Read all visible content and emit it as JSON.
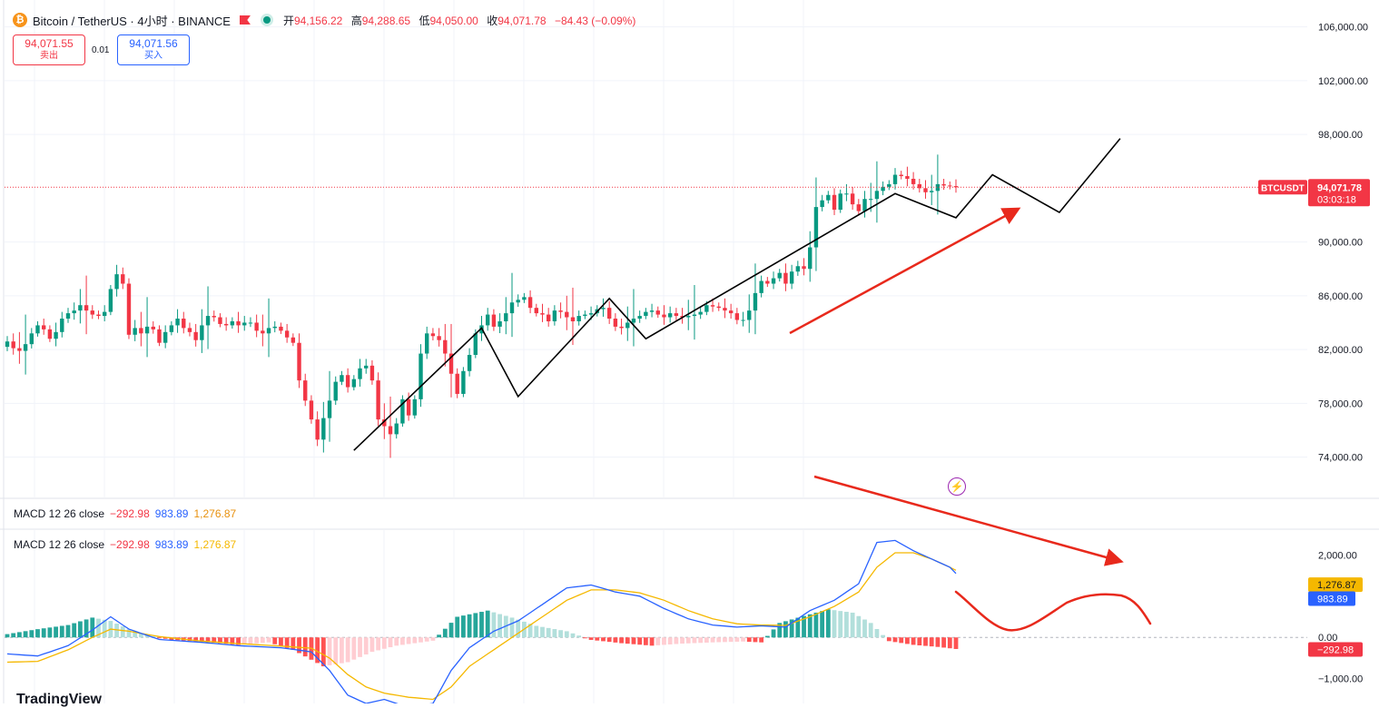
{
  "header": {
    "symbol_title": "Bitcoin / TetherUS · 4小时 · BINANCE",
    "coin_icon": "bitcoin-icon",
    "ohlc": [
      {
        "key": "开",
        "value": "94,156.22"
      },
      {
        "key": "高",
        "value": "94,288.65"
      },
      {
        "key": "低",
        "value": "94,050.00"
      },
      {
        "key": "收",
        "value": "94,071.78"
      }
    ],
    "change": "−84.43 (−0.09%)"
  },
  "trade": {
    "sell_price": "94,071.55",
    "sell_label": "卖出",
    "spread": "0.01",
    "buy_price": "94,071.56",
    "buy_label": "买入"
  },
  "colors": {
    "up": "#089981",
    "down": "#f23645",
    "macd": "#2962ff",
    "signal": "#f5b800",
    "annot": "#e8291c"
  },
  "price_axis": {
    "ticks": [
      "106,000.00",
      "102,000.00",
      "98,000.00",
      "90,000.00",
      "86,000.00",
      "82,000.00",
      "78,000.00",
      "74,000.00"
    ]
  },
  "price_badge": {
    "symbol": "BTCUSDT",
    "price": "94,071.78",
    "countdown": "03:03:18"
  },
  "macd": {
    "legend1": {
      "name": "MACD 12 26 close",
      "hist": "−292.98",
      "macd": "983.89",
      "signal": "1,276.87"
    },
    "legend2": {
      "name": "MACD 12 26 close",
      "hist": "−292.98",
      "macd": "983.89",
      "signal": "1,276.87"
    },
    "axis_ticks": [
      "2,000.00",
      "0.00",
      "−1,000.00"
    ],
    "badges": {
      "signal": "1,276.87",
      "macd": "983.89",
      "hist": "−292.98"
    }
  },
  "logo_text": "TradingView",
  "chart_data": [
    {
      "type": "candlestick",
      "ylim": [
        71000,
        108000
      ],
      "last_price": 94071.78,
      "close": [
        82600,
        82100,
        81900,
        82400,
        83200,
        83800,
        83500,
        82800,
        83300,
        84300,
        84700,
        84900,
        85300,
        84900,
        84600,
        84500,
        84800,
        86500,
        87600,
        86900,
        83100,
        83600,
        83200,
        83700,
        83500,
        82500,
        83300,
        83800,
        84300,
        83600,
        83300,
        82700,
        83800,
        84500,
        84400,
        83900,
        83800,
        84100,
        83800,
        84000,
        84000,
        83400,
        83200,
        83600,
        83700,
        83400,
        82900,
        82500,
        79700,
        78200,
        76800,
        75300,
        76900,
        78200,
        79600,
        80100,
        79200,
        79800,
        80600,
        80800,
        79700,
        76800,
        76300,
        75700,
        76500,
        78300,
        77100,
        78300,
        81700,
        83200,
        83000,
        82700,
        81700,
        80200,
        78700,
        80400,
        81600,
        83200,
        83800,
        84600,
        83700,
        84100,
        84700,
        85500,
        85700,
        85900,
        85100,
        84700,
        84600,
        84100,
        84900,
        84800,
        84400,
        84100,
        84500,
        84600,
        84700,
        85000,
        85100,
        84300,
        83700,
        83600,
        84000,
        84300,
        84500,
        84800,
        84900,
        84600,
        84400,
        84700,
        84500,
        84400,
        84500,
        84600,
        84800,
        85300,
        85200,
        85100,
        84900,
        84700,
        84200,
        84200,
        84900,
        86200,
        87100,
        86900,
        87300,
        87700,
        86900,
        87800,
        88200,
        88000,
        89600,
        92600,
        93100,
        93500,
        92400,
        93600,
        93600,
        92800,
        92300,
        93200,
        93200,
        93800,
        94100,
        94300,
        95000,
        94900,
        94700,
        94300,
        94000,
        93700,
        93800,
        94300,
        94200,
        94150,
        94071.78
      ],
      "open": [
        82200,
        82600,
        82100,
        81900,
        82400,
        83200,
        83800,
        83500,
        82800,
        83300,
        84300,
        84700,
        84900,
        85300,
        84900,
        84600,
        84500,
        84800,
        86500,
        87600,
        86900,
        83100,
        83600,
        83200,
        83700,
        83500,
        82500,
        83300,
        83800,
        84300,
        83600,
        83300,
        82700,
        83800,
        84500,
        84400,
        83900,
        83800,
        84100,
        83800,
        84000,
        84000,
        83400,
        83200,
        83600,
        83700,
        83400,
        82900,
        82500,
        79700,
        78200,
        76800,
        75300,
        76900,
        78200,
        79600,
        80100,
        79200,
        79800,
        80600,
        80800,
        79700,
        76800,
        76300,
        75700,
        76500,
        78300,
        77100,
        78300,
        81700,
        83200,
        83000,
        82700,
        81700,
        80200,
        78700,
        80400,
        81600,
        83200,
        83800,
        84600,
        83700,
        84100,
        84700,
        85500,
        85700,
        85900,
        85100,
        84700,
        84600,
        84100,
        84900,
        84800,
        84400,
        84100,
        84500,
        84600,
        84700,
        85000,
        85100,
        84300,
        83700,
        83600,
        84000,
        84300,
        84500,
        84800,
        84900,
        84600,
        84400,
        84700,
        84500,
        84400,
        84500,
        84600,
        84800,
        85300,
        85200,
        85100,
        84900,
        84700,
        84200,
        84200,
        84900,
        86200,
        87100,
        86900,
        87300,
        87700,
        86900,
        87800,
        88200,
        88000,
        89600,
        92600,
        93100,
        93500,
        92400,
        93600,
        93600,
        92800,
        92300,
        93200,
        93200,
        93800,
        94100,
        94300,
        95000,
        94900,
        94700,
        94300,
        94000,
        93700,
        93800,
        94300,
        94200,
        94156.22
      ],
      "high_extra": [
        400,
        600,
        1200,
        2200,
        400,
        300,
        500,
        300,
        700,
        500
      ],
      "current_candle": {
        "open": 94156.22,
        "high": 94288.65,
        "low": 94050.0,
        "close": 94071.78
      }
    },
    {
      "type": "macd",
      "ylim": [
        -1600,
        2600
      ],
      "current": {
        "hist": -292.98,
        "macd": 983.89,
        "signal": 1276.87
      },
      "hist_keypoints": [
        [
          0,
          80
        ],
        [
          5,
          200
        ],
        [
          10,
          300
        ],
        [
          14,
          480
        ],
        [
          17,
          400
        ],
        [
          20,
          200
        ],
        [
          23,
          50
        ],
        [
          27,
          -60
        ],
        [
          32,
          -100
        ],
        [
          38,
          -180
        ],
        [
          43,
          -120
        ],
        [
          47,
          -300
        ],
        [
          52,
          -700
        ],
        [
          56,
          -600
        ],
        [
          60,
          -350
        ],
        [
          64,
          -200
        ],
        [
          70,
          -80
        ],
        [
          74,
          500
        ],
        [
          79,
          650
        ],
        [
          83,
          480
        ],
        [
          87,
          280
        ],
        [
          92,
          150
        ],
        [
          96,
          -60
        ],
        [
          101,
          -140
        ],
        [
          106,
          -200
        ],
        [
          111,
          -150
        ],
        [
          116,
          -120
        ],
        [
          121,
          -100
        ],
        [
          124,
          -120
        ],
        [
          127,
          350
        ],
        [
          131,
          520
        ],
        [
          135,
          680
        ],
        [
          139,
          600
        ],
        [
          142,
          350
        ],
        [
          145,
          -90
        ],
        [
          149,
          -180
        ],
        [
          153,
          -230
        ],
        [
          156,
          -280
        ],
        [
          160,
          -292.98
        ]
      ],
      "macd_keypoints": [
        [
          0,
          -400
        ],
        [
          5,
          -450
        ],
        [
          10,
          -200
        ],
        [
          14,
          180
        ],
        [
          17,
          500
        ],
        [
          20,
          200
        ],
        [
          25,
          -50
        ],
        [
          32,
          -120
        ],
        [
          38,
          -200
        ],
        [
          45,
          -250
        ],
        [
          50,
          -350
        ],
        [
          53,
          -800
        ],
        [
          56,
          -1400
        ],
        [
          59,
          -1600
        ],
        [
          62,
          -1500
        ],
        [
          66,
          -1700
        ],
        [
          70,
          -1600
        ],
        [
          73,
          -800
        ],
        [
          76,
          -250
        ],
        [
          80,
          150
        ],
        [
          84,
          400
        ],
        [
          88,
          800
        ],
        [
          92,
          1200
        ],
        [
          96,
          1270
        ],
        [
          100,
          1100
        ],
        [
          104,
          1000
        ],
        [
          108,
          700
        ],
        [
          112,
          450
        ],
        [
          116,
          300
        ],
        [
          120,
          250
        ],
        [
          124,
          280
        ],
        [
          128,
          250
        ],
        [
          132,
          650
        ],
        [
          136,
          900
        ],
        [
          140,
          1300
        ],
        [
          143,
          2300
        ],
        [
          146,
          2350
        ],
        [
          149,
          2100
        ],
        [
          152,
          1900
        ],
        [
          155,
          1700
        ],
        [
          157,
          1400
        ],
        [
          160,
          983.89
        ]
      ],
      "signal_keypoints": [
        [
          0,
          -600
        ],
        [
          5,
          -580
        ],
        [
          10,
          -300
        ],
        [
          14,
          0
        ],
        [
          17,
          200
        ],
        [
          20,
          150
        ],
        [
          25,
          20
        ],
        [
          32,
          -90
        ],
        [
          38,
          -150
        ],
        [
          45,
          -210
        ],
        [
          50,
          -260
        ],
        [
          53,
          -500
        ],
        [
          56,
          -900
        ],
        [
          59,
          -1200
        ],
        [
          62,
          -1350
        ],
        [
          66,
          -1450
        ],
        [
          70,
          -1500
        ],
        [
          73,
          -1200
        ],
        [
          76,
          -700
        ],
        [
          80,
          -300
        ],
        [
          84,
          100
        ],
        [
          88,
          500
        ],
        [
          92,
          900
        ],
        [
          96,
          1150
        ],
        [
          100,
          1150
        ],
        [
          104,
          1080
        ],
        [
          108,
          900
        ],
        [
          112,
          650
        ],
        [
          116,
          450
        ],
        [
          120,
          330
        ],
        [
          124,
          300
        ],
        [
          128,
          290
        ],
        [
          132,
          500
        ],
        [
          136,
          750
        ],
        [
          140,
          1100
        ],
        [
          143,
          1700
        ],
        [
          146,
          2050
        ],
        [
          149,
          2050
        ],
        [
          152,
          1900
        ],
        [
          155,
          1700
        ],
        [
          157,
          1550
        ],
        [
          160,
          1276.87
        ]
      ]
    }
  ]
}
